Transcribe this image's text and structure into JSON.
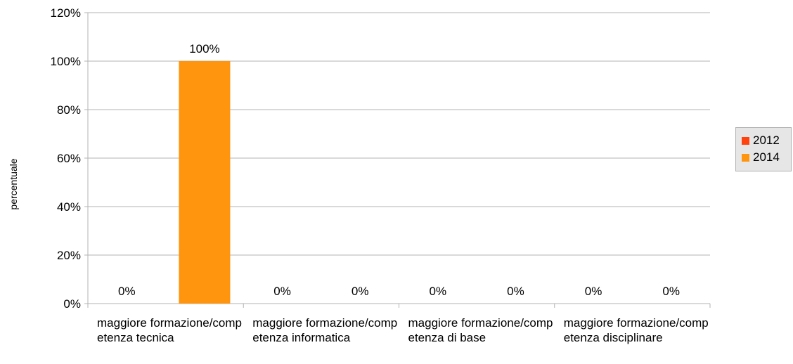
{
  "chart_data": {
    "type": "bar",
    "ylabel": "percentuale",
    "ylim": [
      0,
      120
    ],
    "yticks": [
      "0%",
      "20%",
      "40%",
      "60%",
      "80%",
      "100%",
      "120%"
    ],
    "grid": true,
    "legend_position": "right",
    "categories": [
      "maggiore formazione/competenza tecnica",
      "maggiore formazione/competenza informatica",
      "maggiore formazione/competenza di base",
      "maggiore formazione/competenza disciplinare"
    ],
    "series": [
      {
        "name": "2012",
        "color": "#ff420e",
        "values": [
          0,
          0,
          0,
          0
        ],
        "labels": [
          "0%",
          "0%",
          "0%",
          "0%"
        ]
      },
      {
        "name": "2014",
        "color": "#ff950e",
        "values": [
          100,
          0,
          0,
          0
        ],
        "labels": [
          "100%",
          "0%",
          "0%",
          "0%"
        ]
      }
    ]
  }
}
